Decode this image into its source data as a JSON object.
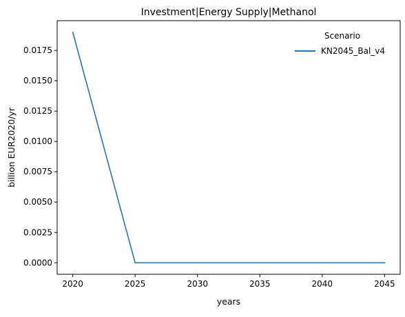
{
  "chart_data": {
    "type": "line",
    "title": "Investment|Energy Supply|Methanol",
    "xlabel": "years",
    "ylabel": "billion EUR2020/yr",
    "x": [
      2020,
      2025,
      2030,
      2035,
      2040,
      2045
    ],
    "series": [
      {
        "name": "KN2045_Bal_v4",
        "color": "#1f77b4",
        "values": [
          0.019,
          0.0,
          0.0,
          0.0,
          0.0,
          0.0
        ]
      }
    ],
    "xticks": [
      2020,
      2025,
      2030,
      2035,
      2040,
      2045
    ],
    "xtick_labels": [
      "2020",
      "2025",
      "2030",
      "2035",
      "2040",
      "2045"
    ],
    "yticks": [
      0.0,
      0.0025,
      0.005,
      0.0075,
      0.01,
      0.0125,
      0.015,
      0.0175
    ],
    "ytick_labels": [
      "0.0000",
      "0.0025",
      "0.0050",
      "0.0075",
      "0.0100",
      "0.0125",
      "0.0150",
      "0.0175"
    ],
    "xlim": [
      2018.75,
      2046.25
    ],
    "ylim": [
      -0.00095,
      0.01995
    ],
    "grid": false,
    "legend": {
      "title": "Scenario",
      "placement": "top-right"
    }
  }
}
